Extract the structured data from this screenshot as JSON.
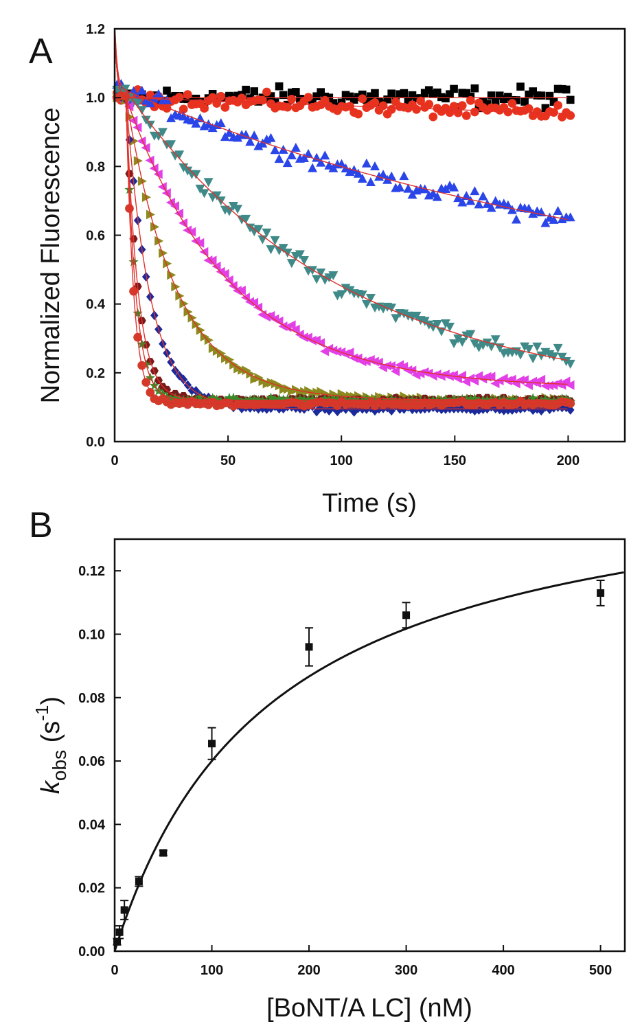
{
  "colors": {
    "fit_line_A": "#e0302a",
    "fit_line_B": "#111111",
    "axis": "#111111"
  },
  "chart_data": [
    {
      "panel": "A",
      "type": "scatter",
      "xlabel": "Time (s)",
      "ylabel": "Normalized Fluorescence",
      "xlim": [
        0,
        225
      ],
      "ylim": [
        0,
        1.2
      ],
      "xticks": [
        "0",
        "50",
        "100",
        "150",
        "200"
      ],
      "yticks": [
        "0.0",
        "0.2",
        "0.4",
        "0.6",
        "0.8",
        "1.0",
        "1.2"
      ],
      "grid": false,
      "legend": "none",
      "fit_lines": true,
      "series": [
        {
          "marker": "square",
          "color": "#000000",
          "y0": 1.0,
          "plateau": 1.0,
          "k": 0.0,
          "noise": 0.025,
          "start": 5
        },
        {
          "marker": "circle",
          "color": "#e8321e",
          "y0": 1.0,
          "plateau": 0.5,
          "k": 0.0005,
          "noise": 0.02,
          "start": 5
        },
        {
          "marker": "triangle-up",
          "color": "#2a45e8",
          "y0": 1.02,
          "plateau": 0.35,
          "k": 0.0042,
          "noise": 0.022,
          "start": 5
        },
        {
          "marker": "triangle-down",
          "color": "#3f8a88",
          "y0": 1.02,
          "plateau": 0.12,
          "k": 0.0105,
          "noise": 0.022,
          "start": 5
        },
        {
          "marker": "triangle-left",
          "color": "#e23fe6",
          "y0": 1.0,
          "plateau": 0.155,
          "k": 0.022,
          "noise": 0.01,
          "start": 5
        },
        {
          "marker": "triangle-right",
          "color": "#8c8a1e",
          "y0": 1.0,
          "plateau": 0.12,
          "k": 0.045,
          "noise": 0.006,
          "start": 5
        },
        {
          "marker": "diamond",
          "color": "#1a2a9a",
          "y0": 1.0,
          "plateau": 0.095,
          "k": 0.095,
          "noise": 0.006,
          "start": 5
        },
        {
          "marker": "hexagon",
          "color": "#7a1a1a",
          "y0": 1.0,
          "plateau": 0.12,
          "k": 0.19,
          "noise": 0.006,
          "start": 5
        },
        {
          "marker": "star",
          "color": "#3a8a2a",
          "y0": 1.0,
          "plateau": 0.12,
          "k": 0.24,
          "noise": 0.006,
          "start": 5
        },
        {
          "marker": "circle",
          "color": "#d23a2a",
          "y0": 1.0,
          "plateau": 0.11,
          "k": 0.3,
          "noise": 0.006,
          "start": 5
        }
      ]
    },
    {
      "panel": "B",
      "type": "scatter",
      "xlabel": "[BoNT/A LC] (nM)",
      "ylabel_main": "k",
      "ylabel_sub": "obs",
      "ylabel_unit_open": " (s",
      "ylabel_sup": "-1",
      "ylabel_unit_close": ")",
      "xlim": [
        0,
        525
      ],
      "ylim": [
        0,
        0.13
      ],
      "xticks": [
        "0",
        "100",
        "200",
        "300",
        "400",
        "500"
      ],
      "yticks": [
        "0.00",
        "0.02",
        "0.04",
        "0.06",
        "0.08",
        "0.10",
        "0.12"
      ],
      "grid": false,
      "legend": "none",
      "fit": {
        "type": "hyperbolic",
        "vmax": 0.156,
        "km": 160
      },
      "points": [
        {
          "x": 2.5,
          "y": 0.003,
          "err": 0.001
        },
        {
          "x": 5,
          "y": 0.006,
          "err": 0.002
        },
        {
          "x": 10,
          "y": 0.013,
          "err": 0.003
        },
        {
          "x": 25,
          "y": 0.022,
          "err": 0.0015
        },
        {
          "x": 50,
          "y": 0.031,
          "err": 0.0008
        },
        {
          "x": 100,
          "y": 0.0655,
          "err": 0.005
        },
        {
          "x": 200,
          "y": 0.096,
          "err": 0.006
        },
        {
          "x": 300,
          "y": 0.106,
          "err": 0.004
        },
        {
          "x": 500,
          "y": 0.113,
          "err": 0.004
        }
      ]
    }
  ],
  "panel_labels": {
    "a": "A",
    "b": "B"
  }
}
